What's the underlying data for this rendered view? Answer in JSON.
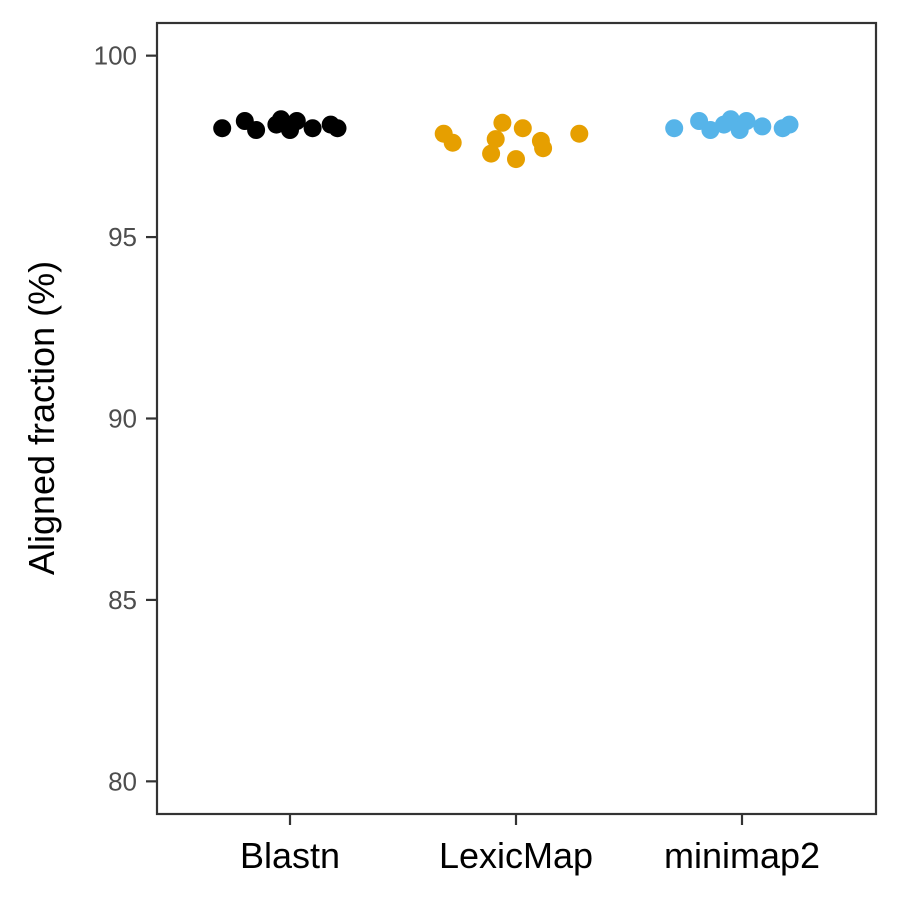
{
  "chart_data": {
    "type": "scatter",
    "title": "",
    "xlabel": "",
    "ylabel": "Aligned fraction (%)",
    "ylim": [
      79.1,
      100.9
    ],
    "yticks": [
      80,
      85,
      90,
      95,
      100
    ],
    "ytick_labels": [
      "80",
      "85",
      "90",
      "95",
      "100"
    ],
    "grid": false,
    "legend": "none",
    "categories": [
      "Blastn",
      "LexicMap",
      "minimap2"
    ],
    "series": [
      {
        "category": "Blastn",
        "color": "#000000",
        "points": [
          {
            "jitter": -0.3,
            "y": 98.0
          },
          {
            "jitter": -0.2,
            "y": 98.2
          },
          {
            "jitter": -0.15,
            "y": 97.95
          },
          {
            "jitter": -0.06,
            "y": 98.1
          },
          {
            "jitter": -0.04,
            "y": 98.25
          },
          {
            "jitter": 0.0,
            "y": 97.95
          },
          {
            "jitter": 0.03,
            "y": 98.2
          },
          {
            "jitter": 0.1,
            "y": 98.0
          },
          {
            "jitter": 0.18,
            "y": 98.1
          },
          {
            "jitter": 0.21,
            "y": 98.0
          }
        ]
      },
      {
        "category": "LexicMap",
        "color": "#E69F00",
        "points": [
          {
            "jitter": -0.32,
            "y": 97.85
          },
          {
            "jitter": -0.28,
            "y": 97.6
          },
          {
            "jitter": -0.11,
            "y": 97.3
          },
          {
            "jitter": -0.09,
            "y": 97.7
          },
          {
            "jitter": -0.06,
            "y": 98.15
          },
          {
            "jitter": 0.0,
            "y": 97.15
          },
          {
            "jitter": 0.03,
            "y": 98.0
          },
          {
            "jitter": 0.11,
            "y": 97.65
          },
          {
            "jitter": 0.12,
            "y": 97.45
          },
          {
            "jitter": 0.28,
            "y": 97.85
          }
        ]
      },
      {
        "category": "minimap2",
        "color": "#56B4E9",
        "points": [
          {
            "jitter": -0.3,
            "y": 98.0
          },
          {
            "jitter": -0.19,
            "y": 98.2
          },
          {
            "jitter": -0.14,
            "y": 97.95
          },
          {
            "jitter": -0.08,
            "y": 98.1
          },
          {
            "jitter": -0.05,
            "y": 98.25
          },
          {
            "jitter": -0.01,
            "y": 97.95
          },
          {
            "jitter": 0.02,
            "y": 98.2
          },
          {
            "jitter": 0.09,
            "y": 98.05
          },
          {
            "jitter": 0.18,
            "y": 98.0
          },
          {
            "jitter": 0.21,
            "y": 98.1
          }
        ]
      }
    ]
  }
}
